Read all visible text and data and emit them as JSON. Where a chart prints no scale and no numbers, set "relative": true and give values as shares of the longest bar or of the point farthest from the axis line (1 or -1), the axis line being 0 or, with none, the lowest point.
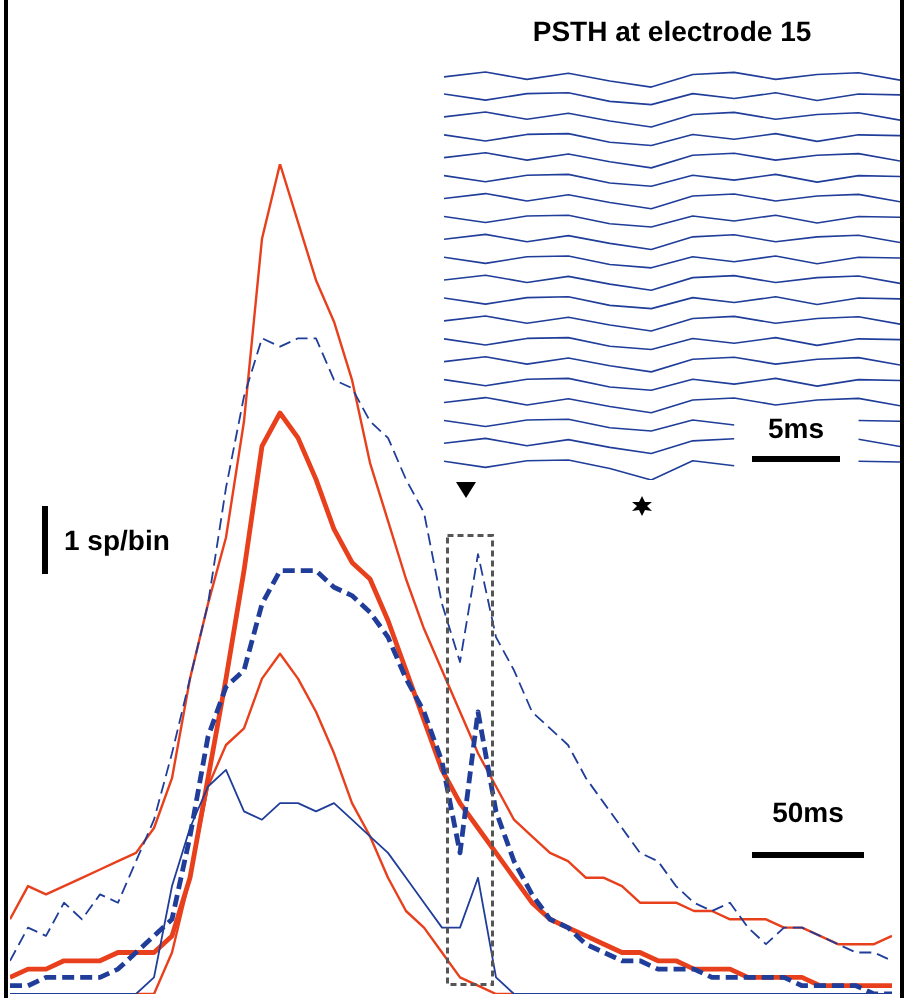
{
  "chart_data": [
    {
      "type": "line",
      "relative": true,
      "categories": [
        null,
        null,
        null,
        null,
        null,
        null,
        null,
        null,
        null,
        null,
        null,
        null,
        null,
        null,
        null,
        null,
        null,
        null,
        null,
        null,
        null,
        null,
        null,
        null,
        null,
        null,
        null,
        null,
        null,
        null,
        null,
        null,
        null,
        null,
        null,
        null,
        null,
        null,
        null,
        null,
        null,
        null,
        null,
        null,
        null,
        null,
        null,
        null,
        null,
        null
      ],
      "annotations": [
        "1 sp/bin",
        "50ms"
      ],
      "series": [
        {
          "color": "#e8401c",
          "line_style": "solid",
          "values": [
            0.09,
            0.13,
            0.12,
            0.13,
            0.14,
            0.15,
            0.16,
            0.17,
            0.2,
            0.26,
            0.38,
            0.47,
            0.55,
            0.69,
            0.91,
            1,
            0.93,
            0.86,
            0.81,
            0.74,
            0.64,
            0.57,
            0.5,
            0.44,
            0.39,
            0.34,
            0.29,
            0.25,
            0.21,
            0.19,
            0.17,
            0.16,
            0.14,
            0.14,
            0.13,
            0.11,
            0.11,
            0.11,
            0.1,
            0.1,
            0.09,
            0.09,
            0.09,
            0.08,
            0.08,
            0.07,
            0.06,
            0.06,
            0.06,
            0.07
          ]
        },
        {
          "color": "#e8401c",
          "line_style": "solid",
          "values": [
            0.02,
            0.03,
            0.03,
            0.04,
            0.04,
            0.04,
            0.05,
            0.05,
            0.05,
            0.07,
            0.14,
            0.26,
            0.38,
            0.51,
            0.66,
            0.7,
            0.67,
            0.62,
            0.56,
            0.52,
            0.5,
            0.45,
            0.39,
            0.33,
            0.27,
            0.23,
            0.2,
            0.17,
            0.14,
            0.11,
            0.09,
            0.08,
            0.07,
            0.06,
            0.05,
            0.05,
            0.04,
            0.04,
            0.03,
            0.03,
            0.03,
            0.02,
            0.02,
            0.02,
            0.02,
            0.01,
            0.01,
            0.01,
            0.01,
            0.01
          ]
        },
        {
          "color": "#e8401c",
          "line_style": "solid",
          "values": [
            null,
            null,
            null,
            null,
            null,
            null,
            null,
            0,
            0,
            0.05,
            0.14,
            0.25,
            0.3,
            0.32,
            0.38,
            0.41,
            0.38,
            0.34,
            0.29,
            0.23,
            0.19,
            0.14,
            0.1,
            0.08,
            0.05,
            0.02,
            0.01,
            0,
            0,
            null,
            null,
            null,
            null,
            null,
            null,
            null,
            null,
            null,
            null,
            null,
            null,
            null,
            null,
            null,
            null,
            null,
            null,
            null,
            null,
            null
          ]
        },
        {
          "color": "#1f3d99",
          "line_style": "dashed",
          "values": [
            0.01,
            0.01,
            0.02,
            0.02,
            0.02,
            0.02,
            0.03,
            0.05,
            0.07,
            0.09,
            0.19,
            0.31,
            0.37,
            0.39,
            0.47,
            0.51,
            0.51,
            0.51,
            0.49,
            0.48,
            0.46,
            0.43,
            0.38,
            0.34,
            0.28,
            0.17,
            0.34,
            0.22,
            0.16,
            0.12,
            0.09,
            0.08,
            0.06,
            0.05,
            0.04,
            0.04,
            0.03,
            0.03,
            0.03,
            0.02,
            0.02,
            0.02,
            0.02,
            0.02,
            0.01,
            0.01,
            0.01,
            0.01,
            0,
            0
          ]
        },
        {
          "color": "#1f3d99",
          "line_style": "dashed",
          "values": [
            0.04,
            0.08,
            0.07,
            0.11,
            0.09,
            0.12,
            0.11,
            0.16,
            0.21,
            0.29,
            0.38,
            0.47,
            0.61,
            0.72,
            0.79,
            0.78,
            0.79,
            0.79,
            0.74,
            0.73,
            0.69,
            0.67,
            0.62,
            0.58,
            0.47,
            0.4,
            0.53,
            0.43,
            0.39,
            0.34,
            0.32,
            0.3,
            0.26,
            0.23,
            0.2,
            0.17,
            0.16,
            0.13,
            0.11,
            0.1,
            0.11,
            0.08,
            0.06,
            0.08,
            0.08,
            0.07,
            0.06,
            0.05,
            0.05,
            0.04
          ]
        },
        {
          "color": "#1f3d99",
          "line_style": "solid",
          "values": [
            0,
            0,
            0,
            0,
            0,
            0,
            0,
            0,
            0.02,
            0.13,
            0.2,
            0.25,
            0.27,
            0.22,
            0.21,
            0.23,
            0.23,
            0.22,
            0.23,
            0.21,
            0.19,
            0.17,
            0.14,
            0.11,
            0.08,
            0.08,
            0.14,
            0.02,
            0,
            0,
            0,
            0,
            0,
            0,
            0,
            0,
            0,
            0,
            0,
            0,
            0,
            0,
            0,
            0,
            0,
            0,
            0,
            0,
            0,
            0
          ]
        }
      ]
    },
    {
      "type": "line",
      "relative": true,
      "title": "PSTH at electrode 15",
      "annotations": [
        "5ms"
      ],
      "categories": [
        null,
        null,
        null,
        null,
        null,
        null,
        null,
        null,
        null,
        null,
        null,
        null
      ],
      "series": [
        {
          "color": "#1f3d99",
          "values": [
            0.988,
            1.0,
            0.982,
            0.997,
            0.978,
            0.963,
            0.994,
            0.999,
            0.982,
            0.994,
            0.998,
            0.98
          ]
        },
        {
          "color": "#1f3d99",
          "values": [
            0.946,
            0.931,
            0.947,
            0.949,
            0.928,
            0.92,
            0.947,
            0.935,
            0.949,
            0.93,
            0.946,
            0.944
          ]
        },
        {
          "color": "#1f3d99",
          "values": [
            0.89,
            0.902,
            0.884,
            0.899,
            0.88,
            0.865,
            0.896,
            0.901,
            0.884,
            0.896,
            0.9,
            0.882
          ]
        },
        {
          "color": "#1f3d99",
          "values": [
            0.846,
            0.831,
            0.847,
            0.849,
            0.828,
            0.82,
            0.847,
            0.835,
            0.849,
            0.83,
            0.846,
            0.844
          ]
        },
        {
          "color": "#1f3d99",
          "values": [
            0.79,
            0.802,
            0.784,
            0.799,
            0.78,
            0.765,
            0.796,
            0.801,
            0.784,
            0.796,
            0.8,
            0.782
          ]
        },
        {
          "color": "#1f3d99",
          "values": [
            0.746,
            0.731,
            0.747,
            0.749,
            0.728,
            0.72,
            0.747,
            0.735,
            0.749,
            0.73,
            0.746,
            0.744
          ]
        },
        {
          "color": "#1f3d99",
          "values": [
            0.69,
            0.702,
            0.684,
            0.699,
            0.68,
            0.665,
            0.696,
            0.701,
            0.684,
            0.696,
            0.7,
            0.682
          ]
        },
        {
          "color": "#1f3d99",
          "values": [
            0.646,
            0.631,
            0.647,
            0.649,
            0.628,
            0.62,
            0.647,
            0.635,
            0.649,
            0.63,
            0.646,
            0.644
          ]
        },
        {
          "color": "#1f3d99",
          "values": [
            0.59,
            0.602,
            0.584,
            0.599,
            0.58,
            0.565,
            0.596,
            0.601,
            0.584,
            0.596,
            0.6,
            0.582
          ]
        },
        {
          "color": "#1f3d99",
          "values": [
            0.546,
            0.531,
            0.547,
            0.549,
            0.528,
            0.52,
            0.547,
            0.535,
            0.549,
            0.53,
            0.546,
            0.544
          ]
        },
        {
          "color": "#1f3d99",
          "values": [
            0.49,
            0.502,
            0.484,
            0.499,
            0.48,
            0.465,
            0.496,
            0.501,
            0.484,
            0.496,
            0.5,
            0.482
          ]
        },
        {
          "color": "#1f3d99",
          "values": [
            0.446,
            0.431,
            0.447,
            0.449,
            0.428,
            0.42,
            0.447,
            0.435,
            0.449,
            0.43,
            0.446,
            0.444
          ]
        },
        {
          "color": "#1f3d99",
          "values": [
            0.39,
            0.402,
            0.384,
            0.399,
            0.38,
            0.365,
            0.396,
            0.401,
            0.384,
            0.396,
            0.4,
            0.382
          ]
        },
        {
          "color": "#1f3d99",
          "values": [
            0.346,
            0.331,
            0.347,
            0.349,
            0.328,
            0.32,
            0.347,
            0.335,
            0.349,
            0.33,
            0.346,
            0.344
          ]
        },
        {
          "color": "#1f3d99",
          "values": [
            0.29,
            0.302,
            0.284,
            0.299,
            0.28,
            0.265,
            0.296,
            0.301,
            0.284,
            0.296,
            0.3,
            0.282
          ]
        },
        {
          "color": "#1f3d99",
          "values": [
            0.246,
            0.231,
            0.247,
            0.249,
            0.228,
            0.22,
            0.247,
            0.235,
            0.249,
            0.23,
            0.246,
            0.244
          ]
        },
        {
          "color": "#1f3d99",
          "values": [
            0.19,
            0.202,
            0.184,
            0.199,
            0.18,
            0.165,
            0.196,
            0.201,
            0.184,
            0.196,
            0.2,
            0.182
          ]
        },
        {
          "color": "#1f3d99",
          "values": [
            0.146,
            0.131,
            0.147,
            0.149,
            0.128,
            0.12,
            0.147,
            0.135,
            null,
            null,
            0.146,
            0.144
          ]
        },
        {
          "color": "#1f3d99",
          "values": [
            0.09,
            0.102,
            0.084,
            0.099,
            0.08,
            0.065,
            0.096,
            0.101,
            null,
            null,
            0.1,
            0.082
          ]
        },
        {
          "color": "#1f3d99",
          "values": [
            0.046,
            0.031,
            0.047,
            0.049,
            0.028,
            0,
            0.047,
            0.035,
            null,
            null,
            0.046,
            0.044
          ]
        }
      ]
    }
  ]
}
